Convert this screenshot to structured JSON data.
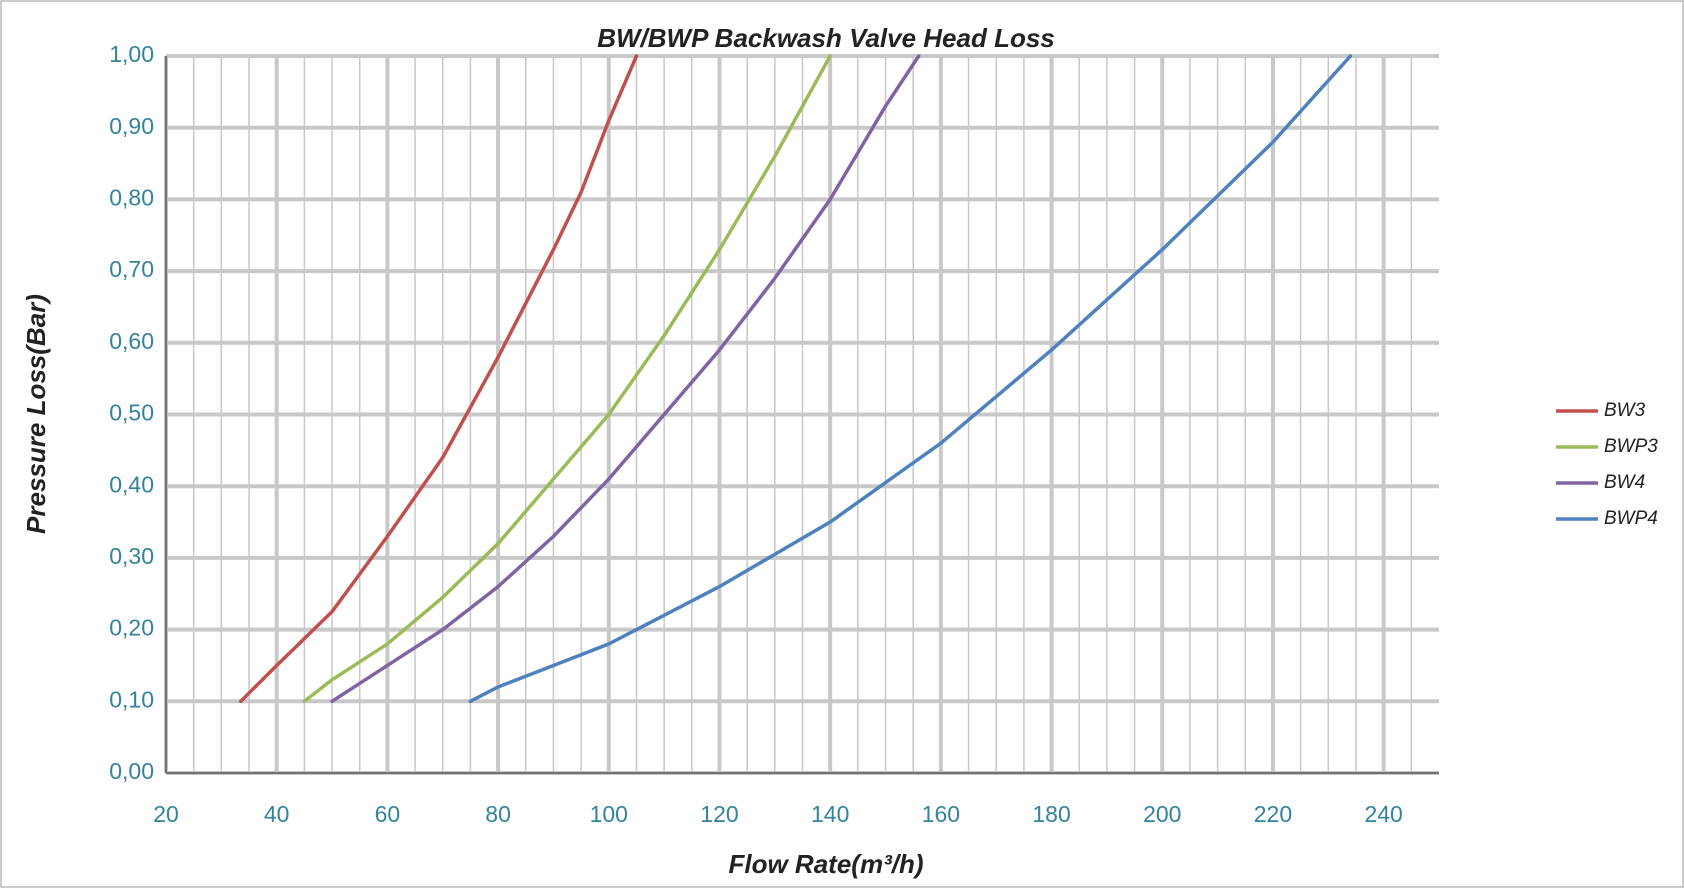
{
  "chart_data": {
    "type": "line",
    "title": "BW/BWP Backwash Valve Head Loss",
    "x_label": "Flow Rate(m³/h)",
    "y_label": "Pressure Loss(Bar)",
    "xlim": [
      20,
      250
    ],
    "ylim": [
      0,
      1
    ],
    "xticks": [
      20,
      40,
      60,
      80,
      100,
      120,
      140,
      160,
      180,
      200,
      220,
      240
    ],
    "xminorticks": [
      25,
      30,
      35,
      45,
      50,
      55,
      65,
      70,
      75,
      85,
      90,
      95,
      105,
      110,
      115,
      125,
      130,
      135,
      145,
      150,
      155,
      165,
      170,
      175,
      185,
      190,
      195,
      205,
      210,
      215,
      225,
      230,
      235,
      245
    ],
    "yticks": [
      {
        "value": 0,
        "label": "0,00"
      },
      {
        "value": 0.1,
        "label": "0,10"
      },
      {
        "value": 0.2,
        "label": "0,20"
      },
      {
        "value": 0.3,
        "label": "0,30"
      },
      {
        "value": 0.4,
        "label": "0,40"
      },
      {
        "value": 0.5,
        "label": "0,50"
      },
      {
        "value": 0.6,
        "label": "0,60"
      },
      {
        "value": 0.7,
        "label": "0,70"
      },
      {
        "value": 0.8,
        "label": "0,80"
      },
      {
        "value": 0.9,
        "label": "0,90"
      },
      {
        "value": 1,
        "label": "1,00"
      }
    ],
    "grid": true,
    "legend": "right",
    "series": [
      {
        "name": "BW3",
        "color": "#c0504d",
        "x": [
          33.5,
          40,
          50,
          60,
          70,
          80,
          90,
          95,
          100,
          105
        ],
        "values": [
          0.1,
          0.15,
          0.225,
          0.33,
          0.44,
          0.58,
          0.73,
          0.81,
          0.91,
          1.0
        ]
      },
      {
        "name": "BWP3",
        "color": "#9bbb59",
        "x": [
          45,
          50,
          60,
          70,
          80,
          90,
          100,
          110,
          120,
          130,
          140
        ],
        "values": [
          0.1,
          0.13,
          0.18,
          0.245,
          0.32,
          0.41,
          0.5,
          0.61,
          0.73,
          0.86,
          1.0
        ]
      },
      {
        "name": "BW4",
        "color": "#8064a2",
        "x": [
          50,
          60,
          70,
          80,
          90,
          100,
          110,
          120,
          130,
          140,
          150,
          156
        ],
        "values": [
          0.1,
          0.15,
          0.2,
          0.26,
          0.33,
          0.41,
          0.5,
          0.59,
          0.69,
          0.8,
          0.93,
          1.0
        ]
      },
      {
        "name": "BWP4",
        "color": "#4f81bd",
        "x": [
          75,
          80,
          90,
          100,
          110,
          120,
          140,
          160,
          180,
          200,
          220,
          234
        ],
        "values": [
          0.1,
          0.12,
          0.15,
          0.18,
          0.22,
          0.26,
          0.35,
          0.46,
          0.59,
          0.73,
          0.88,
          1.0
        ]
      }
    ]
  }
}
